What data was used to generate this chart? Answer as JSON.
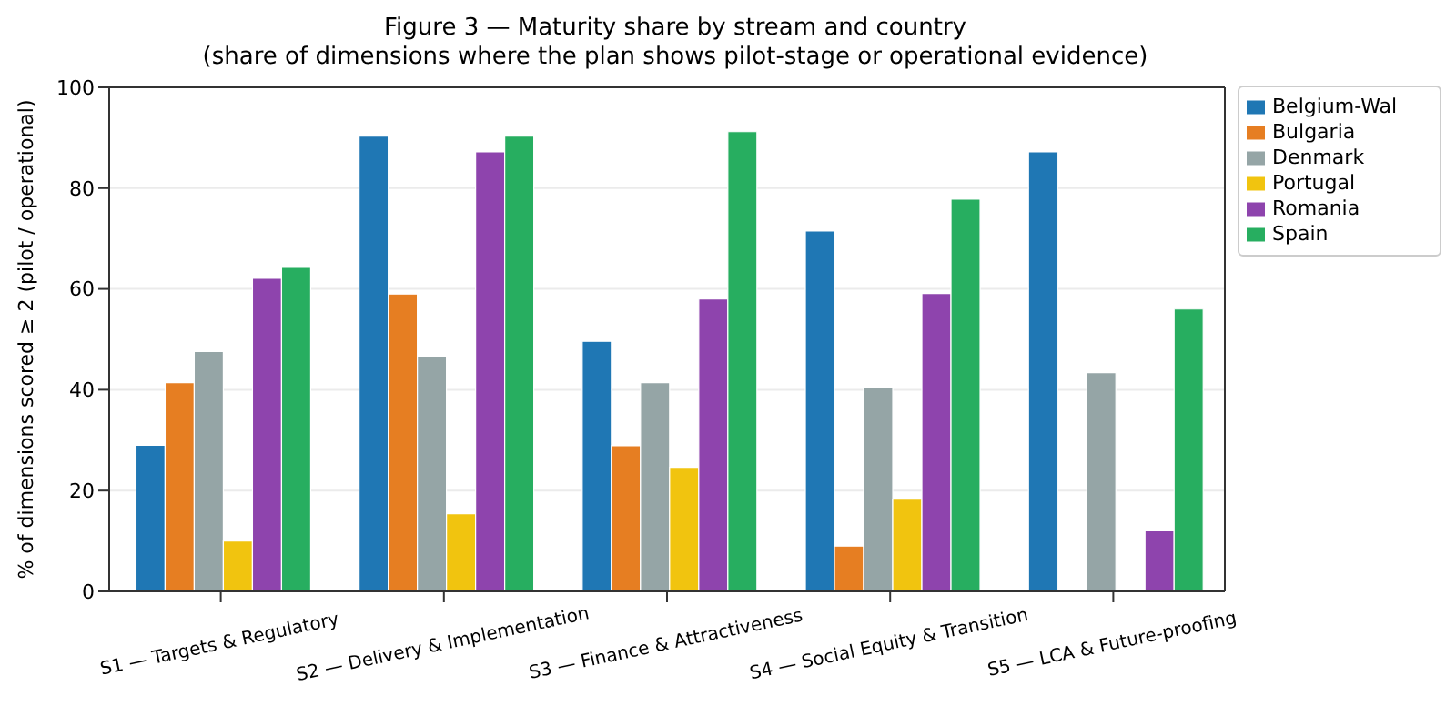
{
  "chart_data": {
    "type": "bar",
    "title": "Figure 3 — Maturity share by stream and country",
    "subtitle": "(share of dimensions where the plan shows pilot-stage or operational evidence)",
    "ylabel": "% of dimensions scored ≥ 2 (pilot / operational)",
    "categories": [
      "S1 — Targets & Regulatory",
      "S2 — Delivery & Implementation",
      "S3 — Finance & Attractiveness",
      "S4 — Social Equity & Transition",
      "S5 — LCA & Future-proofing"
    ],
    "series": [
      {
        "name": "Belgium-Wal",
        "color": "#1f77b4",
        "values": [
          29.0,
          90.3,
          49.6,
          71.5,
          87.2
        ]
      },
      {
        "name": "Bulgaria",
        "color": "#e67e22",
        "values": [
          41.4,
          59.0,
          28.9,
          9.0,
          0
        ]
      },
      {
        "name": "Denmark",
        "color": "#95a5a6",
        "values": [
          47.6,
          46.7,
          41.4,
          40.4,
          43.4
        ]
      },
      {
        "name": "Portugal",
        "color": "#f1c40f",
        "values": [
          10.0,
          15.4,
          24.6,
          18.3,
          0
        ]
      },
      {
        "name": "Romania",
        "color": "#8e44ad",
        "values": [
          62.1,
          87.2,
          58.0,
          59.1,
          12.0
        ]
      },
      {
        "name": "Spain",
        "color": "#27ae60",
        "values": [
          64.3,
          90.3,
          91.2,
          77.8,
          56.0
        ]
      }
    ],
    "ylim": [
      0,
      100
    ],
    "yticks": [
      0,
      20,
      40,
      60,
      80,
      100
    ],
    "grid": "y",
    "legend": "top right"
  }
}
